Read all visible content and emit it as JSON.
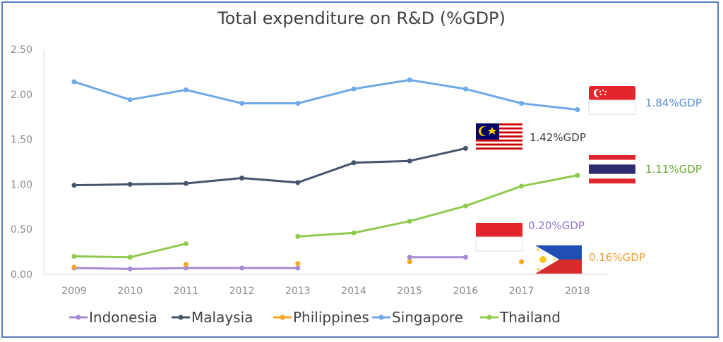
{
  "chart_data": {
    "type": "line",
    "title": "Total expenditure on R&D (%GDP)",
    "xlabel": "",
    "ylabel": "",
    "x": [
      "2009",
      "2010",
      "2011",
      "2012",
      "2013",
      "2014",
      "2015",
      "2016",
      "2017",
      "2018"
    ],
    "ylim": [
      0,
      2.5
    ],
    "yticks": [
      "0.00",
      "0.50",
      "1.00",
      "1.50",
      "2.00",
      "2.50"
    ],
    "grid": false,
    "legend": "bottom",
    "series": [
      {
        "name": "Indonesia",
        "color": "#a58cd4",
        "markers_only": false,
        "values": [
          0.07,
          0.06,
          0.07,
          0.07,
          0.07,
          null,
          0.19,
          0.19,
          null,
          null
        ],
        "callout": "0.20%GDP",
        "flag": "indonesia"
      },
      {
        "name": "Malaysia",
        "color": "#44546a",
        "markers_only": false,
        "values": [
          0.99,
          1.0,
          1.01,
          1.07,
          1.02,
          1.24,
          1.26,
          1.4,
          null,
          null
        ],
        "callout": "1.42%GDP",
        "flag": "malaysia"
      },
      {
        "name": "Philippines",
        "color": "#f5a623",
        "markers_only": true,
        "values": [
          0.08,
          null,
          0.11,
          null,
          0.12,
          null,
          0.14,
          null,
          0.14,
          null
        ],
        "callout": "0.16%GDP",
        "flag": "philippines"
      },
      {
        "name": "Singapore",
        "color": "#6fa8e8",
        "markers_only": false,
        "values": [
          2.14,
          1.94,
          2.05,
          1.9,
          1.9,
          2.06,
          2.16,
          2.06,
          1.9,
          1.83
        ],
        "callout": "1.84%GDP",
        "flag": "singapore"
      },
      {
        "name": "Thailand",
        "color": "#8fcb4f",
        "markers_only": false,
        "values": [
          0.2,
          0.19,
          0.34,
          null,
          0.42,
          0.46,
          0.59,
          0.76,
          0.98,
          1.1
        ],
        "callout": "1.11%GDP",
        "flag": "thailand"
      }
    ]
  }
}
